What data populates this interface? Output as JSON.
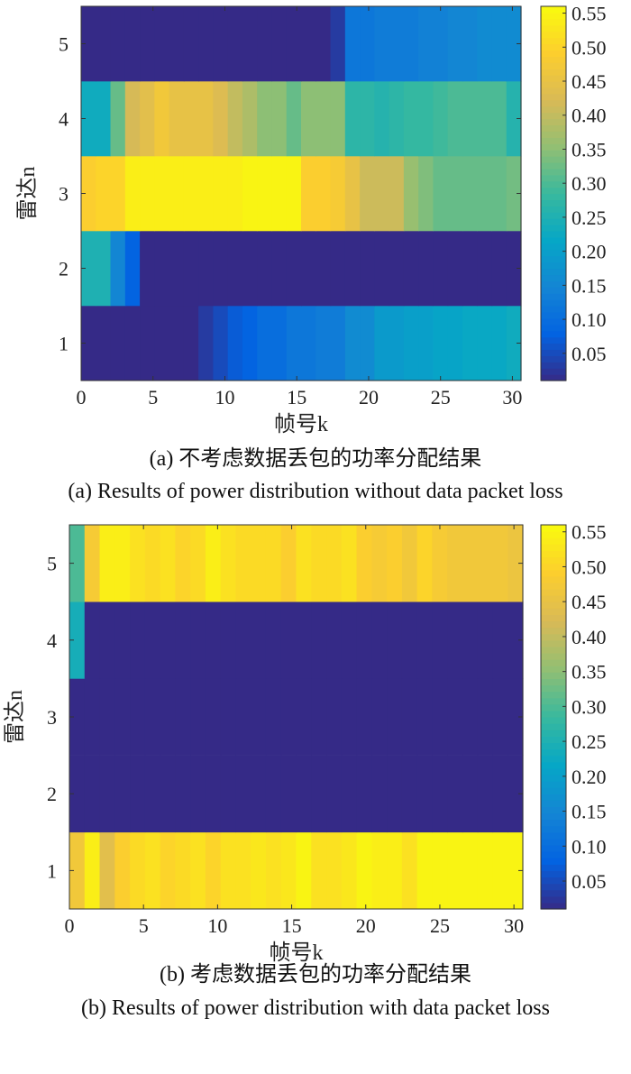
{
  "chart_data": [
    {
      "type": "heatmap",
      "id": "a",
      "xlabel": "帧号k",
      "ylabel": "雷达n",
      "caption_cn": "(a) 不考虑数据丢包的功率分配结果",
      "caption_en": "(a) Results of power distribution without data packet loss",
      "xticks": [
        "0",
        "5",
        "10",
        "15",
        "20",
        "25",
        "30"
      ],
      "yticks": [
        "1",
        "2",
        "3",
        "4",
        "5"
      ],
      "colorbar_ticks": [
        "0.05",
        "0.10",
        "0.15",
        "0.20",
        "0.25",
        "0.30",
        "0.35",
        "0.40",
        "0.45",
        "0.50",
        "0.55"
      ],
      "clim": [
        0.01,
        0.56
      ],
      "xlim": [
        0,
        30.6
      ],
      "rows": [
        {
          "n": 1,
          "values": [
            0.01,
            0.01,
            0.01,
            0.01,
            0.01,
            0.01,
            0.01,
            0.01,
            0.03,
            0.05,
            0.07,
            0.08,
            0.1,
            0.1,
            0.12,
            0.12,
            0.13,
            0.13,
            0.16,
            0.16,
            0.19,
            0.19,
            0.2,
            0.2,
            0.21,
            0.21,
            0.22,
            0.22,
            0.22,
            0.23
          ]
        },
        {
          "n": 2,
          "values": [
            0.25,
            0.25,
            0.15,
            0.08,
            0.01,
            0.01,
            0.01,
            0.01,
            0.01,
            0.01,
            0.01,
            0.01,
            0.01,
            0.01,
            0.01,
            0.01,
            0.01,
            0.01,
            0.01,
            0.01,
            0.01,
            0.01,
            0.01,
            0.01,
            0.01,
            0.01,
            0.01,
            0.01,
            0.01,
            0.01
          ]
        },
        {
          "n": 3,
          "values": [
            0.49,
            0.5,
            0.5,
            0.54,
            0.54,
            0.54,
            0.54,
            0.54,
            0.54,
            0.54,
            0.54,
            0.55,
            0.55,
            0.55,
            0.55,
            0.49,
            0.49,
            0.48,
            0.45,
            0.41,
            0.41,
            0.41,
            0.36,
            0.34,
            0.32,
            0.32,
            0.32,
            0.32,
            0.32,
            0.33
          ]
        },
        {
          "n": 4,
          "values": [
            0.23,
            0.23,
            0.32,
            0.42,
            0.44,
            0.47,
            0.45,
            0.45,
            0.45,
            0.43,
            0.4,
            0.38,
            0.35,
            0.35,
            0.32,
            0.35,
            0.35,
            0.35,
            0.27,
            0.27,
            0.26,
            0.27,
            0.28,
            0.28,
            0.29,
            0.3,
            0.3,
            0.3,
            0.3,
            0.26
          ]
        },
        {
          "n": 5,
          "values": [
            0.01,
            0.01,
            0.01,
            0.01,
            0.01,
            0.01,
            0.01,
            0.01,
            0.01,
            0.01,
            0.01,
            0.01,
            0.01,
            0.01,
            0.01,
            0.01,
            0.01,
            0.03,
            0.12,
            0.12,
            0.13,
            0.13,
            0.13,
            0.14,
            0.14,
            0.15,
            0.15,
            0.16,
            0.16,
            0.16
          ]
        }
      ]
    },
    {
      "type": "heatmap",
      "id": "b",
      "xlabel": "帧号k",
      "ylabel": "雷达n",
      "caption_cn": "(b) 考虑数据丢包的功率分配结果",
      "caption_en": "(b) Results of power distribution with data packet loss",
      "xticks": [
        "0",
        "5",
        "10",
        "15",
        "20",
        "25",
        "30"
      ],
      "yticks": [
        "1",
        "2",
        "3",
        "4",
        "5"
      ],
      "colorbar_ticks": [
        "0.05",
        "0.10",
        "0.15",
        "0.20",
        "0.25",
        "0.30",
        "0.35",
        "0.40",
        "0.45",
        "0.50",
        "0.55"
      ],
      "clim": [
        0.01,
        0.56
      ],
      "xlim": [
        0,
        30.6
      ],
      "rows": [
        {
          "n": 1,
          "values": [
            0.47,
            0.54,
            0.44,
            0.49,
            0.51,
            0.52,
            0.5,
            0.51,
            0.52,
            0.5,
            0.52,
            0.52,
            0.53,
            0.52,
            0.53,
            0.55,
            0.52,
            0.52,
            0.53,
            0.55,
            0.54,
            0.54,
            0.52,
            0.55,
            0.55,
            0.55,
            0.55,
            0.55,
            0.55,
            0.55
          ]
        },
        {
          "n": 2,
          "values": [
            0.01,
            0.01,
            0.01,
            0.01,
            0.01,
            0.01,
            0.01,
            0.01,
            0.01,
            0.01,
            0.01,
            0.01,
            0.01,
            0.01,
            0.01,
            0.01,
            0.01,
            0.01,
            0.01,
            0.01,
            0.01,
            0.01,
            0.01,
            0.01,
            0.01,
            0.01,
            0.01,
            0.01,
            0.01,
            0.01
          ]
        },
        {
          "n": 3,
          "values": [
            0.01,
            0.01,
            0.01,
            0.01,
            0.01,
            0.01,
            0.01,
            0.01,
            0.01,
            0.01,
            0.01,
            0.01,
            0.01,
            0.01,
            0.01,
            0.01,
            0.01,
            0.01,
            0.01,
            0.01,
            0.01,
            0.01,
            0.01,
            0.01,
            0.01,
            0.01,
            0.01,
            0.01,
            0.01,
            0.01
          ]
        },
        {
          "n": 4,
          "values": [
            0.24,
            0.01,
            0.01,
            0.01,
            0.01,
            0.01,
            0.01,
            0.01,
            0.01,
            0.01,
            0.01,
            0.01,
            0.01,
            0.01,
            0.01,
            0.01,
            0.01,
            0.01,
            0.01,
            0.01,
            0.01,
            0.01,
            0.01,
            0.01,
            0.01,
            0.01,
            0.01,
            0.01,
            0.01,
            0.01
          ]
        },
        {
          "n": 5,
          "values": [
            0.3,
            0.48,
            0.54,
            0.54,
            0.52,
            0.51,
            0.52,
            0.5,
            0.51,
            0.54,
            0.52,
            0.51,
            0.51,
            0.51,
            0.49,
            0.52,
            0.51,
            0.51,
            0.52,
            0.49,
            0.48,
            0.49,
            0.47,
            0.5,
            0.48,
            0.47,
            0.47,
            0.47,
            0.47,
            0.46
          ]
        }
      ]
    }
  ]
}
